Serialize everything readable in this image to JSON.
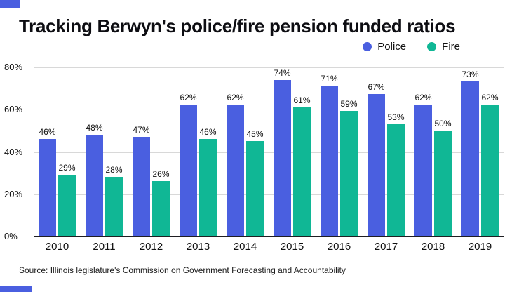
{
  "title": "Tracking Berwyn's police/fire pension funded ratios",
  "source": "Source: Illinois legislature's Commission on Government Forecasting and Accountability",
  "accent_color": "#4a5fe0",
  "legend": [
    {
      "label": "Police",
      "color": "#4a5fe0"
    },
    {
      "label": "Fire",
      "color": "#10b795"
    }
  ],
  "chart_data": {
    "type": "bar",
    "title": "Tracking Berwyn's police/fire pension funded ratios",
    "categories": [
      "2010",
      "2011",
      "2012",
      "2013",
      "2014",
      "2015",
      "2016",
      "2017",
      "2018",
      "2019"
    ],
    "series": [
      {
        "name": "Police",
        "color": "#4a5fe0",
        "values": [
          46,
          48,
          47,
          62,
          62,
          74,
          71,
          67,
          62,
          73
        ]
      },
      {
        "name": "Fire",
        "color": "#10b795",
        "values": [
          29,
          28,
          26,
          46,
          45,
          61,
          59,
          53,
          50,
          62
        ]
      }
    ],
    "xlabel": "",
    "ylabel": "",
    "ylim": [
      0,
      80
    ],
    "yticks": [
      "0%",
      "20%",
      "40%",
      "60%",
      "80%"
    ],
    "grid": true,
    "legend_position": "top-right",
    "value_labels": "percent above each bar"
  }
}
